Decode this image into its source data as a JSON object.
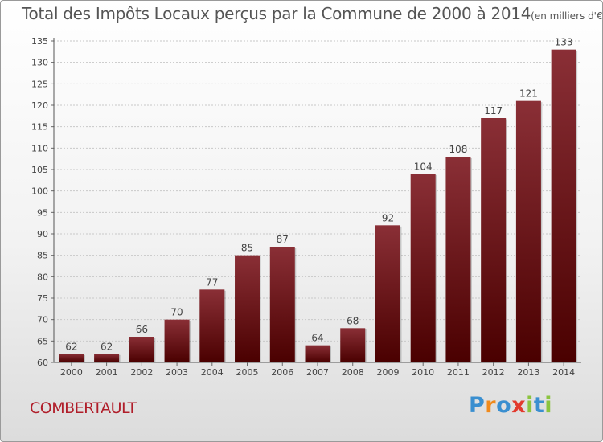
{
  "header": {
    "title": "Total des Impôts Locaux perçus par la Commune de 2000 à 2014",
    "unit": "(en milliers d'€)"
  },
  "footer": {
    "commune": "COMBERTAULT",
    "brand_letters": [
      "P",
      "r",
      "o",
      "x",
      "i",
      "t",
      "i"
    ],
    "brand_colors": [
      "#3a8fd0",
      "#f08a1c",
      "#3a8fd0",
      "#e23a2e",
      "#8bc43f",
      "#3a8fd0",
      "#8bc43f"
    ]
  },
  "chart_data": {
    "type": "bar",
    "categories": [
      "2000",
      "2001",
      "2002",
      "2003",
      "2004",
      "2005",
      "2006",
      "2007",
      "2008",
      "2009",
      "2010",
      "2011",
      "2012",
      "2013",
      "2014"
    ],
    "values": [
      62,
      62,
      66,
      70,
      77,
      85,
      87,
      64,
      68,
      92,
      104,
      108,
      117,
      121,
      133
    ],
    "data_labels": [
      "62",
      "62",
      "66",
      "70",
      "77",
      "85",
      "87",
      "64",
      "68",
      "92",
      "104",
      "108",
      "117",
      "121",
      "133"
    ],
    "ylim": [
      60,
      135
    ],
    "yticks": [
      60,
      65,
      70,
      75,
      80,
      85,
      90,
      95,
      100,
      105,
      110,
      115,
      120,
      125,
      130,
      135
    ],
    "grid": true,
    "bar_color_top": "#8a2f36",
    "bar_color_bottom": "#4a0000"
  }
}
